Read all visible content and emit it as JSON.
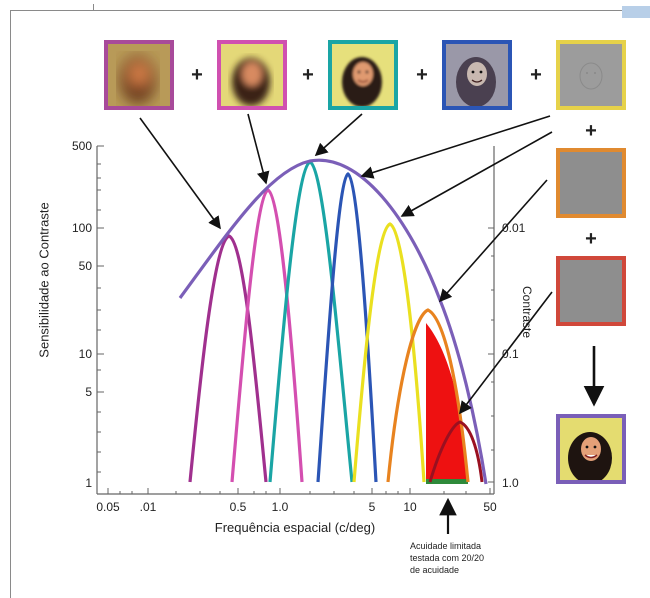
{
  "figure": {
    "y_axis_title": "Sensibilidade ao Contraste",
    "right_axis_title": "Contraste",
    "x_axis_title": "Frequência espacial (c/deg)",
    "y_ticks": [
      "500",
      "100",
      "50",
      "10",
      "5",
      "1"
    ],
    "right_ticks": [
      "0.01",
      "0.1",
      "1.0"
    ],
    "x_ticks": [
      "0.05",
      ".01",
      "0.5",
      "1.0",
      "5",
      "10",
      "50"
    ],
    "note_lines": [
      "Acuidade limitada",
      "testada com 20/20",
      "de acuidade"
    ],
    "operators": [
      "+",
      "+",
      "+",
      "+",
      "+",
      "+"
    ],
    "component_colors": [
      "#c0368c",
      "#d44fb0",
      "#1aa5a5",
      "#2b55b5",
      "#e8e020",
      "#e07a18",
      "#c03020"
    ],
    "envelope_color": "#7b5fb8",
    "fill_color": "#ee1111",
    "images": [
      "blurry-face",
      "blurry-face",
      "face",
      "detailed-face",
      "fine-detail",
      "noise",
      "noise",
      "composite-face"
    ]
  }
}
